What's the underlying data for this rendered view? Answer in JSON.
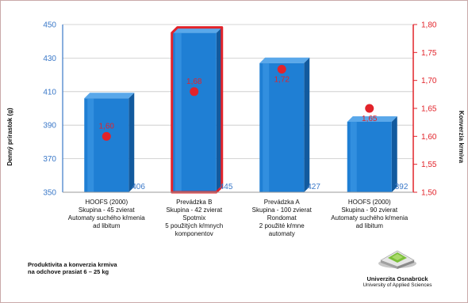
{
  "chart_data": {
    "type": "bar",
    "categories": [
      [
        "HOOFS (2000)",
        "Skupina - 45 zvierat",
        "Automaty suchého kŕmenia",
        "ad libitum"
      ],
      [
        "Prevádzka B",
        "Skupina - 42 zvierat",
        "Spotmix",
        "5 použitých kŕmnych",
        "komponentov"
      ],
      [
        "Prevádzka A",
        "Skupina - 100 zvierat",
        "Rondomat",
        "2 použité kŕmne",
        "automaty"
      ],
      [
        "HOOFS (2000)",
        "Skupina - 90 zvierat",
        "Automaty suchého kŕmenia",
        "ad libitum"
      ]
    ],
    "series": [
      {
        "axis": "left",
        "kind": "bar",
        "values": [
          406,
          445,
          427,
          392
        ],
        "labels": [
          "406",
          "445",
          "427",
          "392"
        ],
        "color": "#1f7fd4"
      },
      {
        "axis": "right",
        "kind": "point",
        "values": [
          1.6,
          1.68,
          1.72,
          1.65
        ],
        "labels": [
          "1,60",
          "1,68",
          "1,72",
          "1,65"
        ],
        "color": "#e2232a"
      }
    ],
    "highlight_index": 1,
    "highlight_color": "#e2232a",
    "ylabel": "Denný prírastok (g)",
    "y2label": "Konverzia krmiva",
    "ylim": [
      350,
      450
    ],
    "y2lim": [
      1.5,
      1.8
    ],
    "yticks": [
      "350",
      "370",
      "390",
      "410",
      "430",
      "450"
    ],
    "y2ticks": [
      "1,50",
      "1,55",
      "1,60",
      "1,65",
      "1,70",
      "1,75",
      "1,80"
    ],
    "grid": true,
    "left_axis_color": "#3a78c8",
    "right_axis_color": "#e2232a"
  },
  "caption": {
    "line1": "Produktivita a konverzia krmiva",
    "line2": "na odchove prasiat 6 – 25 kg"
  },
  "logo": {
    "name": "Univerzita Osnabrück",
    "subtitle": "University of Applied Sciences"
  }
}
